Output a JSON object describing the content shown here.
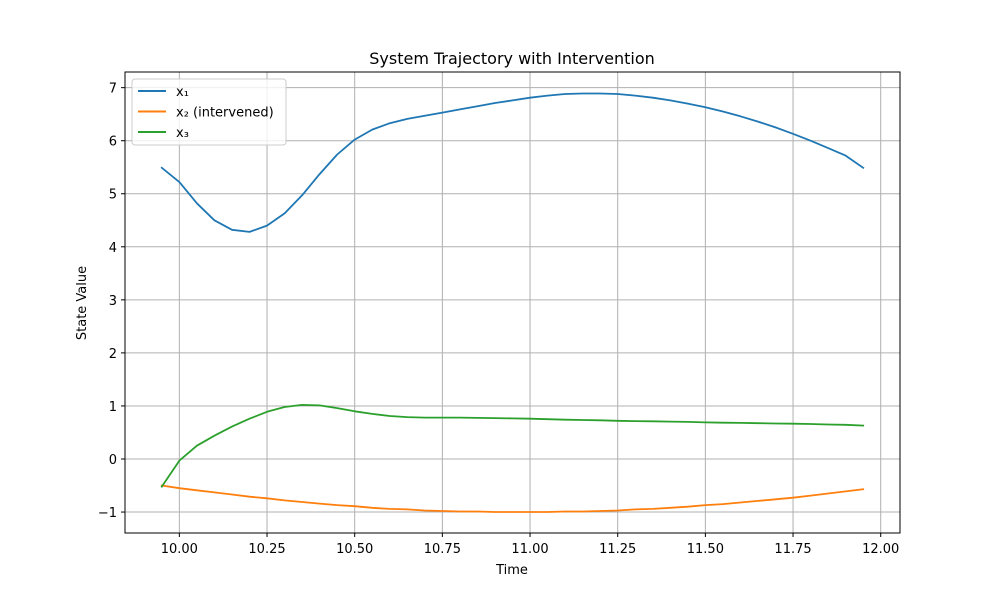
{
  "chart_data": {
    "type": "line",
    "title": "System Trajectory with Intervention",
    "xlabel": "Time",
    "ylabel": "State Value",
    "xlim": [
      9.845,
      12.055
    ],
    "ylim": [
      -1.395,
      7.295
    ],
    "xticks": [
      10.0,
      10.25,
      10.5,
      10.75,
      11.0,
      11.25,
      11.5,
      11.75,
      12.0
    ],
    "xtick_labels": [
      "10.00",
      "10.25",
      "10.50",
      "10.75",
      "11.00",
      "11.25",
      "11.50",
      "11.75",
      "12.00"
    ],
    "yticks": [
      -1,
      0,
      1,
      2,
      3,
      4,
      5,
      6,
      7
    ],
    "ytick_labels": [
      "−1",
      "0",
      "1",
      "2",
      "3",
      "4",
      "5",
      "6",
      "7"
    ],
    "grid": true,
    "legend_position": "top-left",
    "x": [
      9.95,
      10.0,
      10.05,
      10.1,
      10.15,
      10.2,
      10.25,
      10.3,
      10.35,
      10.4,
      10.45,
      10.5,
      10.55,
      10.6,
      10.65,
      10.7,
      10.75,
      10.8,
      10.85,
      10.9,
      10.95,
      11.0,
      11.05,
      11.1,
      11.15,
      11.2,
      11.25,
      11.3,
      11.35,
      11.4,
      11.45,
      11.5,
      11.55,
      11.6,
      11.65,
      11.7,
      11.75,
      11.8,
      11.85,
      11.9,
      11.95
    ],
    "series": [
      {
        "name": "x₁",
        "color": "#1f77b4",
        "values": [
          5.49,
          5.22,
          4.82,
          4.5,
          4.32,
          4.28,
          4.4,
          4.63,
          4.97,
          5.37,
          5.74,
          6.02,
          6.21,
          6.33,
          6.41,
          6.47,
          6.53,
          6.59,
          6.65,
          6.71,
          6.76,
          6.81,
          6.85,
          6.88,
          6.89,
          6.89,
          6.88,
          6.85,
          6.81,
          6.76,
          6.7,
          6.63,
          6.55,
          6.46,
          6.36,
          6.25,
          6.13,
          6.0,
          5.86,
          5.72,
          5.49
        ]
      },
      {
        "name": "x₂ (intervened)",
        "color": "#ff7f0e",
        "values": [
          -0.5,
          -0.55,
          -0.59,
          -0.63,
          -0.67,
          -0.71,
          -0.74,
          -0.78,
          -0.81,
          -0.84,
          -0.87,
          -0.89,
          -0.92,
          -0.94,
          -0.95,
          -0.97,
          -0.98,
          -0.99,
          -0.99,
          -1.0,
          -1.0,
          -1.0,
          -1.0,
          -0.99,
          -0.99,
          -0.98,
          -0.97,
          -0.95,
          -0.94,
          -0.92,
          -0.9,
          -0.87,
          -0.85,
          -0.82,
          -0.79,
          -0.76,
          -0.73,
          -0.69,
          -0.65,
          -0.61,
          -0.57
        ]
      },
      {
        "name": "x₃",
        "color": "#2ca02c",
        "values": [
          -0.52,
          -0.03,
          0.25,
          0.44,
          0.61,
          0.76,
          0.89,
          0.98,
          1.02,
          1.01,
          0.96,
          0.9,
          0.85,
          0.81,
          0.79,
          0.78,
          0.78,
          0.78,
          0.775,
          0.77,
          0.765,
          0.76,
          0.75,
          0.74,
          0.735,
          0.73,
          0.72,
          0.715,
          0.71,
          0.705,
          0.7,
          0.69,
          0.685,
          0.68,
          0.675,
          0.67,
          0.665,
          0.66,
          0.65,
          0.645,
          0.63
        ]
      }
    ]
  }
}
